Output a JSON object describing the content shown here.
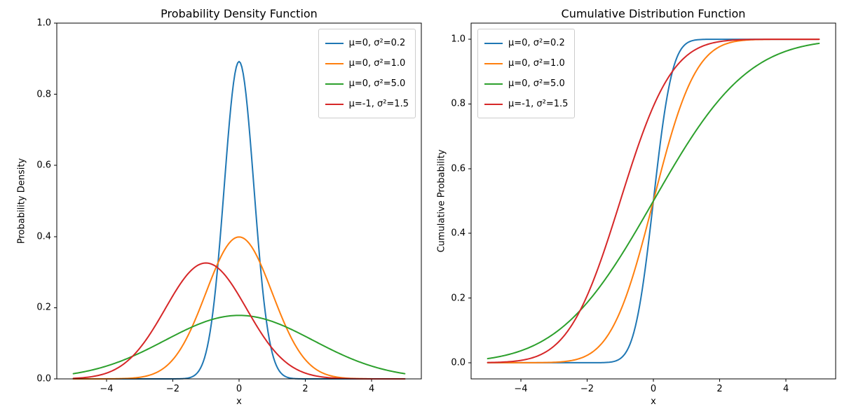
{
  "figure": {
    "background_color": "#ffffff",
    "text_color": "#000000",
    "axes_color": "#000000"
  },
  "chart_data": [
    {
      "type": "line",
      "title": "Probability Density Function",
      "xlabel": "x",
      "ylabel": "Probability Density",
      "xlim": [
        -5.5,
        5.5
      ],
      "ylim": [
        0,
        1
      ],
      "x_range": [
        -5,
        5
      ],
      "grid": false,
      "legend_position": "upper-right",
      "xticks": {
        "values": [
          -4,
          -2,
          0,
          2,
          4
        ],
        "labels": [
          "−4",
          "−2",
          "0",
          "2",
          "4"
        ]
      },
      "yticks": {
        "values": [
          0,
          0.2,
          0.4,
          0.6,
          0.8,
          1.0
        ],
        "labels": [
          "0.0",
          "0.2",
          "0.4",
          "0.6",
          "0.8",
          "1.0"
        ]
      },
      "series": [
        {
          "name": "μ=0, σ²=0.2",
          "color": "#1f77b4",
          "distribution": "normal-pdf",
          "mu": 0,
          "sigma2": 0.2,
          "peak_value": 0.892,
          "peak_x": 0
        },
        {
          "name": "μ=0, σ²=1.0",
          "color": "#ff7f0e",
          "distribution": "normal-pdf",
          "mu": 0,
          "sigma2": 1.0,
          "peak_value": 0.399,
          "peak_x": 0
        },
        {
          "name": "μ=0, σ²=5.0",
          "color": "#2ca02c",
          "distribution": "normal-pdf",
          "mu": 0,
          "sigma2": 5.0,
          "peak_value": 0.178,
          "peak_x": 0
        },
        {
          "name": "μ=-1, σ²=1.5",
          "color": "#d62728",
          "distribution": "normal-pdf",
          "mu": -1,
          "sigma2": 1.5,
          "peak_value": 0.326,
          "peak_x": -1
        }
      ]
    },
    {
      "type": "line",
      "title": "Cumulative Distribution Function",
      "xlabel": "x",
      "ylabel": "Cumulative Probability",
      "xlim": [
        -5.5,
        5.5
      ],
      "ylim": [
        -0.05,
        1.05
      ],
      "x_range": [
        -5,
        5
      ],
      "grid": false,
      "legend_position": "upper-left",
      "xticks": {
        "values": [
          -4,
          -2,
          0,
          2,
          4
        ],
        "labels": [
          "−4",
          "−2",
          "0",
          "2",
          "4"
        ]
      },
      "yticks": {
        "values": [
          0,
          0.2,
          0.4,
          0.6,
          0.8,
          1.0
        ],
        "labels": [
          "0.0",
          "0.2",
          "0.4",
          "0.6",
          "0.8",
          "1.0"
        ]
      },
      "series": [
        {
          "name": "μ=0, σ²=0.2",
          "color": "#1f77b4",
          "distribution": "normal-cdf",
          "mu": 0,
          "sigma2": 0.2,
          "value_at_x0": 0.5
        },
        {
          "name": "μ=0, σ²=1.0",
          "color": "#ff7f0e",
          "distribution": "normal-cdf",
          "mu": 0,
          "sigma2": 1.0,
          "value_at_x0": 0.5
        },
        {
          "name": "μ=0, σ²=5.0",
          "color": "#2ca02c",
          "distribution": "normal-cdf",
          "mu": 0,
          "sigma2": 5.0,
          "value_at_x0": 0.5
        },
        {
          "name": "μ=-1, σ²=1.5",
          "color": "#d62728",
          "distribution": "normal-cdf",
          "mu": -1,
          "sigma2": 1.5,
          "value_at_x0": 0.793
        }
      ]
    }
  ]
}
